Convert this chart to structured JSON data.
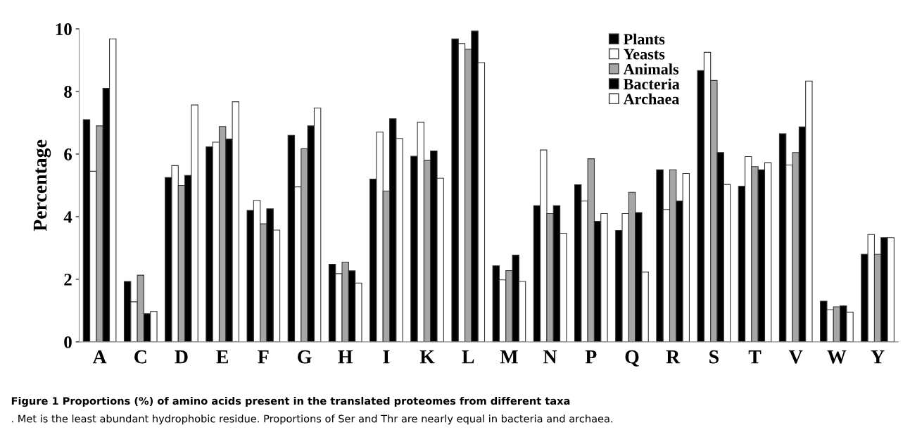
{
  "chart_data": {
    "type": "bar",
    "ylabel": "Percentage",
    "categories": [
      "A",
      "C",
      "D",
      "E",
      "F",
      "G",
      "H",
      "I",
      "K",
      "L",
      "M",
      "N",
      "P",
      "Q",
      "R",
      "S",
      "T",
      "V",
      "W",
      "Y"
    ],
    "series": [
      {
        "name": "Plants",
        "color": "#000000",
        "values": [
          7.1,
          1.93,
          5.25,
          6.23,
          4.2,
          6.6,
          2.48,
          5.2,
          5.93,
          9.68,
          2.43,
          4.35,
          5.02,
          3.56,
          5.5,
          8.67,
          4.97,
          6.65,
          1.3,
          2.8
        ]
      },
      {
        "name": "Yeasts",
        "color": "#ffffff",
        "values": [
          5.45,
          1.28,
          5.63,
          6.38,
          4.52,
          4.95,
          2.18,
          6.7,
          7.02,
          9.53,
          1.98,
          6.13,
          4.5,
          4.1,
          4.23,
          9.25,
          5.92,
          5.65,
          1.03,
          3.43
        ]
      },
      {
        "name": "Animals",
        "color": "#a6a6a6",
        "values": [
          6.9,
          2.13,
          5.0,
          6.88,
          3.77,
          6.17,
          2.55,
          4.82,
          5.8,
          9.35,
          2.28,
          4.1,
          5.85,
          4.78,
          5.5,
          8.35,
          5.6,
          6.05,
          1.12,
          2.8
        ]
      },
      {
        "name": "Bacteria",
        "color": "#000000",
        "values": [
          8.1,
          0.9,
          5.32,
          6.48,
          4.25,
          6.9,
          2.27,
          7.13,
          6.1,
          9.93,
          2.77,
          4.35,
          3.85,
          4.13,
          4.5,
          6.05,
          5.5,
          6.87,
          1.15,
          3.33
        ]
      },
      {
        "name": "Archaea",
        "color": "#ffffff",
        "values": [
          9.68,
          0.97,
          7.57,
          7.67,
          3.57,
          7.47,
          1.88,
          6.5,
          5.23,
          8.92,
          1.93,
          3.47,
          4.1,
          2.23,
          5.38,
          5.03,
          5.72,
          8.33,
          0.95,
          3.33
        ]
      }
    ],
    "ylim": [
      0,
      10
    ],
    "yticks": [
      0,
      2,
      4,
      6,
      8,
      10
    ],
    "grid": false,
    "legend": "top",
    "annotations": [
      "Figure 1 Proportions (%) of amino acids present in the translated proteomes from different taxa",
      ". Met is the least abundant hydrophobic residue. Proportions of Ser and Thr are nearly equal in bacteria and archaea."
    ]
  }
}
